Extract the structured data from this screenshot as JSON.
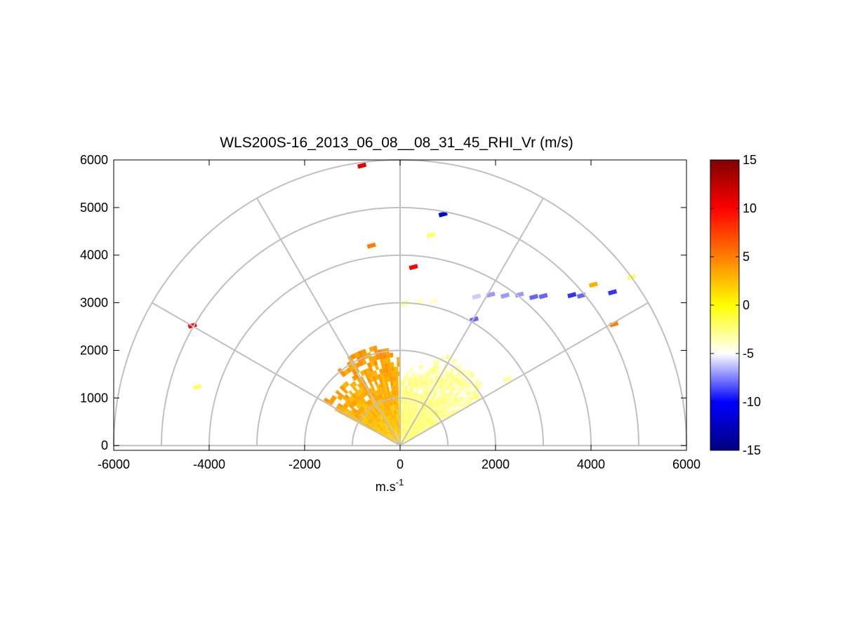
{
  "chart_data": {
    "type": "heatmap",
    "title": "WLS200S-16_2013_06_08__08_31_45_RHI_Vr (m/s)",
    "xlabel": "m.s",
    "xlabel_superscript": "-1",
    "ylabel": "",
    "xlim": [
      -6000,
      6000
    ],
    "ylim": [
      -100,
      6000
    ],
    "xticks": [
      "-6000",
      "-4000",
      "-2000",
      "0",
      "2000",
      "4000",
      "6000"
    ],
    "xtick_values": [
      -6000,
      -4000,
      -2000,
      0,
      2000,
      4000,
      6000
    ],
    "yticks": [
      "0",
      "1000",
      "2000",
      "3000",
      "4000",
      "5000",
      "6000"
    ],
    "ytick_values": [
      0,
      1000,
      2000,
      3000,
      4000,
      5000,
      6000
    ],
    "polar_grid": {
      "range_rings": [
        1000,
        2000,
        3000,
        4000,
        5000,
        6000
      ],
      "spoke_angles_deg": [
        0,
        30,
        60,
        90,
        120,
        150,
        180
      ],
      "grid": "on"
    },
    "colorbar": {
      "position": "right",
      "ticks": [
        "15",
        "10",
        "5",
        "0",
        "-5",
        "-10",
        "-15"
      ],
      "tick_values": [
        15,
        10,
        5,
        0,
        -5,
        -10,
        -15
      ],
      "clim": [
        -15,
        15
      ],
      "colormap": [
        "#00007f",
        "#0000ff",
        "#ffffff",
        "#ffff00",
        "#ff7f00",
        "#ff0000",
        "#7f0000"
      ]
    },
    "sectors": [
      {
        "name_hidden": true,
        "az_from_deg": 90,
        "az_to_deg": 150,
        "r_max": 2100,
        "value_near": 2,
        "value_far": 4
      },
      {
        "name_hidden": true,
        "az_from_deg": 30,
        "az_to_deg": 90,
        "r_max": 2100,
        "value_near": -2,
        "value_far": -3.5
      }
    ],
    "points": [
      {
        "x": -800,
        "y": 5880,
        "v": 11
      },
      {
        "x": 900,
        "y": 4860,
        "v": -11
      },
      {
        "x": 650,
        "y": 4420,
        "v": -2
      },
      {
        "x": -600,
        "y": 4200,
        "v": 5
      },
      {
        "x": 280,
        "y": 3750,
        "v": 10
      },
      {
        "x": -4350,
        "y": 2520,
        "v": 10
      },
      {
        "x": -4250,
        "y": 1230,
        "v": -2
      },
      {
        "x": 4050,
        "y": 3380,
        "v": 3
      },
      {
        "x": 4450,
        "y": 3220,
        "v": -9
      },
      {
        "x": 4850,
        "y": 3540,
        "v": -2
      },
      {
        "x": 4480,
        "y": 2550,
        "v": 5
      },
      {
        "x": 2250,
        "y": 1390,
        "v": -3
      },
      {
        "x": 3600,
        "y": 3160,
        "v": -9
      },
      {
        "x": 3800,
        "y": 3150,
        "v": -8
      },
      {
        "x": 1550,
        "y": 2650,
        "v": -8
      }
    ],
    "arm": [
      {
        "x": 100,
        "y": 2990,
        "v": -3
      },
      {
        "x": 400,
        "y": 3040,
        "v": -4
      },
      {
        "x": 700,
        "y": 3030,
        "v": -4
      },
      {
        "x": 1000,
        "y": 3080,
        "v": -5
      },
      {
        "x": 1300,
        "y": 3090,
        "v": -5
      },
      {
        "x": 1600,
        "y": 3130,
        "v": -6
      },
      {
        "x": 1900,
        "y": 3170,
        "v": -7
      },
      {
        "x": 2200,
        "y": 3150,
        "v": -7
      },
      {
        "x": 2500,
        "y": 3170,
        "v": -7
      },
      {
        "x": 2800,
        "y": 3120,
        "v": -8
      },
      {
        "x": 3000,
        "y": 3140,
        "v": -8
      }
    ]
  }
}
